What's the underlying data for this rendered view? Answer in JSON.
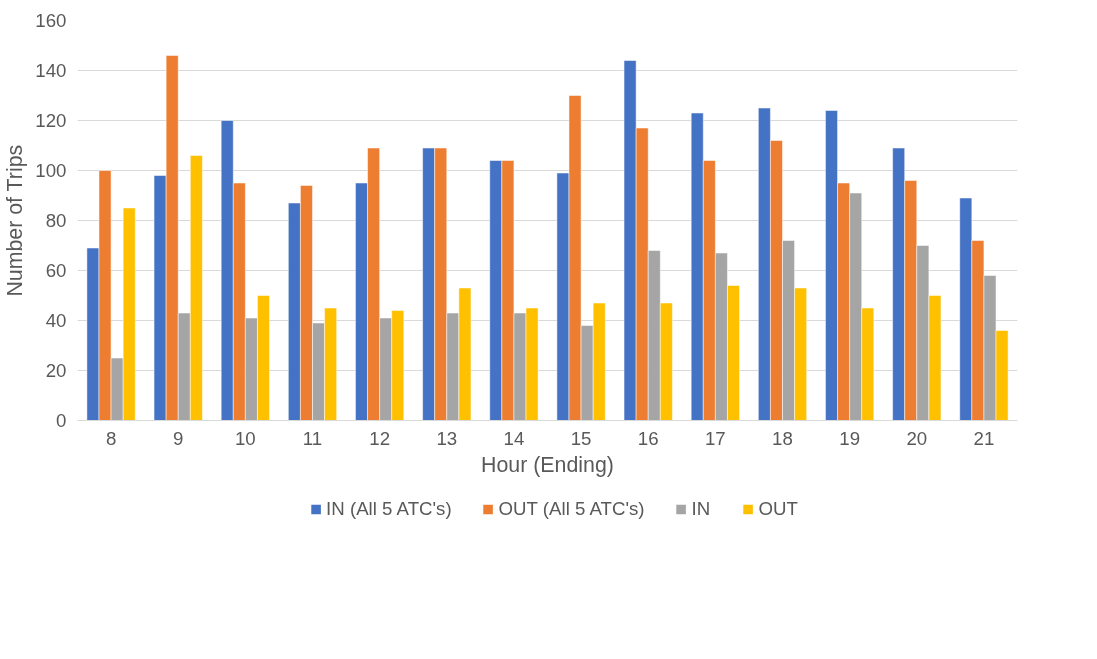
{
  "chart_data": {
    "type": "bar",
    "xlabel": "Hour (Ending)",
    "ylabel": "Number of Trips",
    "categories": [
      "8",
      "9",
      "10",
      "11",
      "12",
      "13",
      "14",
      "15",
      "16",
      "17",
      "18",
      "19",
      "20",
      "21"
    ],
    "series": [
      {
        "name": "IN (All 5 ATC's)",
        "color": "#4472c4",
        "values": [
          69,
          98,
          120,
          87,
          95,
          109,
          104,
          99,
          144,
          123,
          125,
          124,
          109,
          89
        ]
      },
      {
        "name": "OUT (All 5 ATC's)",
        "color": "#ed7d31",
        "values": [
          100,
          146,
          95,
          94,
          109,
          109,
          104,
          130,
          117,
          104,
          112,
          95,
          96,
          72
        ]
      },
      {
        "name": "IN",
        "color": "#a5a5a5",
        "values": [
          25,
          43,
          41,
          39,
          41,
          43,
          43,
          38,
          68,
          67,
          72,
          91,
          70,
          58
        ]
      },
      {
        "name": "OUT",
        "color": "#ffc000",
        "values": [
          85,
          106,
          50,
          45,
          44,
          53,
          45,
          47,
          47,
          54,
          53,
          45,
          50,
          36
        ]
      }
    ],
    "ylim": [
      0,
      160
    ],
    "yticks": [
      0,
      20,
      40,
      60,
      80,
      100,
      120,
      140,
      160
    ],
    "grid": "y",
    "legend": "bottom"
  }
}
